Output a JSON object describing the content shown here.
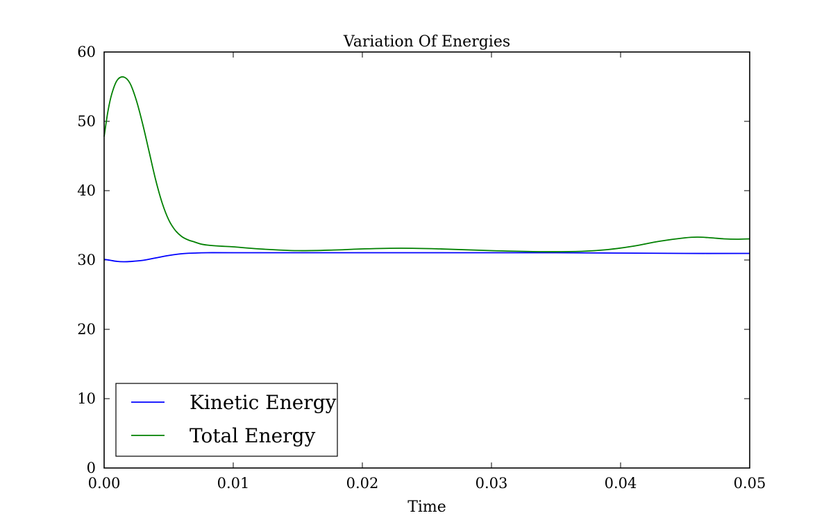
{
  "chart_data": {
    "type": "line",
    "title": "Variation Of Energies",
    "xlabel": "Time",
    "ylabel": "",
    "xlim": [
      0.0,
      0.05
    ],
    "ylim": [
      0,
      60
    ],
    "xticks": [
      0.0,
      0.01,
      0.02,
      0.03,
      0.04,
      0.05
    ],
    "xtick_labels": [
      "0.00",
      "0.01",
      "0.02",
      "0.03",
      "0.04",
      "0.05"
    ],
    "yticks": [
      0,
      10,
      20,
      30,
      40,
      50,
      60
    ],
    "ytick_labels": [
      "0",
      "10",
      "20",
      "30",
      "40",
      "50",
      "60"
    ],
    "grid": false,
    "legend_position": "bottom-left",
    "series": [
      {
        "name": "Kinetic Energy",
        "color": "#0000ff",
        "x": [
          0.0,
          0.0005,
          0.001,
          0.0015,
          0.002,
          0.003,
          0.004,
          0.005,
          0.006,
          0.007,
          0.008,
          0.01,
          0.015,
          0.02,
          0.025,
          0.03,
          0.035,
          0.04,
          0.045,
          0.05
        ],
        "y": [
          30.1,
          29.95,
          29.8,
          29.75,
          29.78,
          29.95,
          30.3,
          30.65,
          30.9,
          31.0,
          31.05,
          31.05,
          31.05,
          31.05,
          31.05,
          31.05,
          31.05,
          31.0,
          30.95,
          30.95
        ]
      },
      {
        "name": "Total Energy",
        "color": "#008000",
        "x": [
          0.0,
          0.0003,
          0.0006,
          0.001,
          0.0015,
          0.002,
          0.0025,
          0.003,
          0.0035,
          0.004,
          0.0045,
          0.005,
          0.0055,
          0.006,
          0.0065,
          0.007,
          0.0075,
          0.008,
          0.009,
          0.01,
          0.012,
          0.015,
          0.018,
          0.02,
          0.023,
          0.026,
          0.03,
          0.034,
          0.037,
          0.039,
          0.041,
          0.043,
          0.045,
          0.046,
          0.047,
          0.048,
          0.049,
          0.05
        ],
        "y": [
          47.8,
          51.5,
          54.0,
          55.9,
          56.4,
          55.5,
          53.0,
          49.5,
          45.5,
          41.5,
          38.2,
          35.8,
          34.3,
          33.4,
          32.9,
          32.6,
          32.3,
          32.15,
          32.0,
          31.9,
          31.6,
          31.35,
          31.45,
          31.6,
          31.7,
          31.6,
          31.35,
          31.2,
          31.25,
          31.5,
          32.0,
          32.7,
          33.2,
          33.3,
          33.2,
          33.05,
          33.0,
          33.05
        ]
      }
    ]
  }
}
